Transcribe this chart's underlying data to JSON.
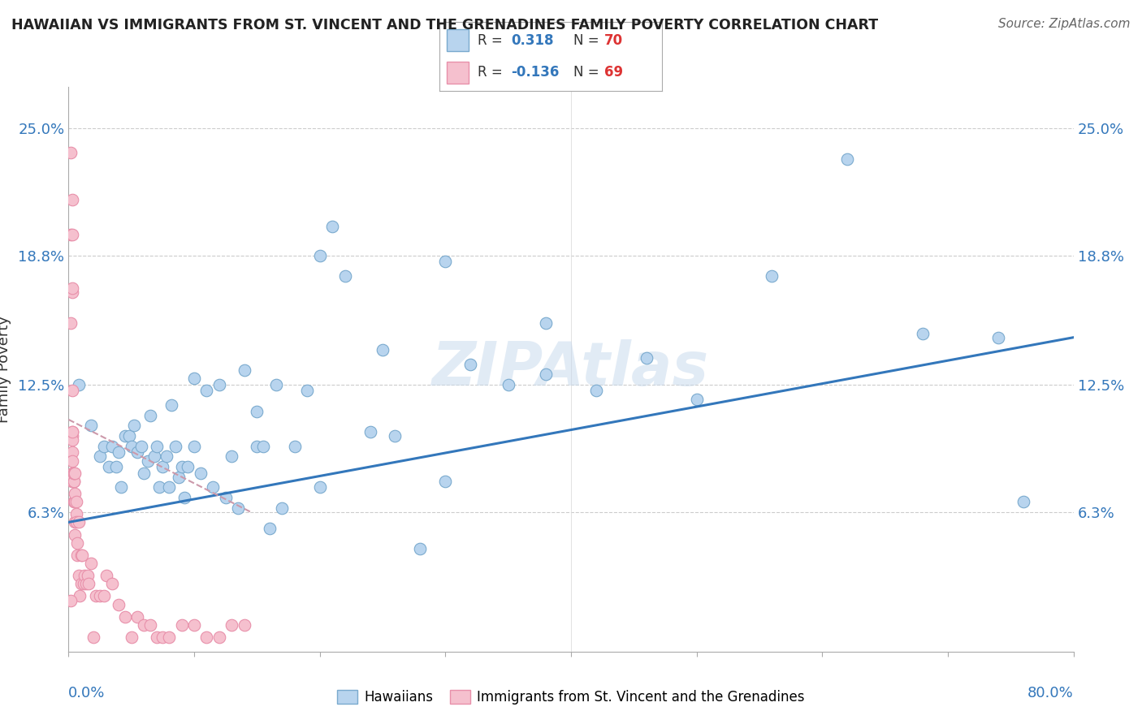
{
  "title": "HAWAIIAN VS IMMIGRANTS FROM ST. VINCENT AND THE GRENADINES FAMILY POVERTY CORRELATION CHART",
  "source": "Source: ZipAtlas.com",
  "ylabel": "Family Poverty",
  "ytick_vals": [
    0.063,
    0.125,
    0.188,
    0.25
  ],
  "ytick_labels": [
    "6.3%",
    "12.5%",
    "18.8%",
    "25.0%"
  ],
  "blue_color": "#b8d4ee",
  "blue_edge": "#7aaace",
  "pink_color": "#f5c0ce",
  "pink_edge": "#e890aa",
  "line_blue": "#3377bb",
  "line_pink": "#cc99aa",
  "xlim": [
    0.0,
    0.8
  ],
  "ylim": [
    -0.005,
    0.27
  ],
  "blue_trend_x": [
    0.0,
    0.8
  ],
  "blue_trend_y": [
    0.058,
    0.148
  ],
  "pink_trend_x": [
    0.0,
    0.145
  ],
  "pink_trend_y": [
    0.108,
    0.063
  ],
  "hawaiians_x": [
    0.008,
    0.018,
    0.025,
    0.028,
    0.032,
    0.035,
    0.038,
    0.04,
    0.042,
    0.045,
    0.048,
    0.05,
    0.052,
    0.055,
    0.058,
    0.06,
    0.063,
    0.065,
    0.068,
    0.07,
    0.072,
    0.075,
    0.078,
    0.08,
    0.082,
    0.085,
    0.088,
    0.09,
    0.092,
    0.095,
    0.1,
    0.105,
    0.11,
    0.115,
    0.12,
    0.125,
    0.13,
    0.135,
    0.14,
    0.15,
    0.155,
    0.16,
    0.165,
    0.17,
    0.18,
    0.19,
    0.2,
    0.21,
    0.22,
    0.24,
    0.26,
    0.28,
    0.3,
    0.32,
    0.35,
    0.38,
    0.42,
    0.46,
    0.5,
    0.56,
    0.62,
    0.68,
    0.74,
    0.76,
    0.38,
    0.3,
    0.25,
    0.2,
    0.15,
    0.1
  ],
  "hawaiians_y": [
    0.125,
    0.105,
    0.09,
    0.095,
    0.085,
    0.095,
    0.085,
    0.092,
    0.075,
    0.1,
    0.1,
    0.095,
    0.105,
    0.092,
    0.095,
    0.082,
    0.088,
    0.11,
    0.09,
    0.095,
    0.075,
    0.085,
    0.09,
    0.075,
    0.115,
    0.095,
    0.08,
    0.085,
    0.07,
    0.085,
    0.095,
    0.082,
    0.122,
    0.075,
    0.125,
    0.07,
    0.09,
    0.065,
    0.132,
    0.095,
    0.095,
    0.055,
    0.125,
    0.065,
    0.095,
    0.122,
    0.188,
    0.202,
    0.178,
    0.102,
    0.1,
    0.045,
    0.078,
    0.135,
    0.125,
    0.155,
    0.122,
    0.138,
    0.118,
    0.178,
    0.235,
    0.15,
    0.148,
    0.068,
    0.13,
    0.185,
    0.142,
    0.075,
    0.112,
    0.128
  ],
  "svg_x": [
    0.002,
    0.002,
    0.002,
    0.003,
    0.003,
    0.003,
    0.003,
    0.003,
    0.003,
    0.003,
    0.003,
    0.003,
    0.003,
    0.003,
    0.003,
    0.003,
    0.003,
    0.003,
    0.004,
    0.004,
    0.004,
    0.004,
    0.004,
    0.004,
    0.005,
    0.005,
    0.005,
    0.005,
    0.005,
    0.005,
    0.006,
    0.006,
    0.006,
    0.007,
    0.007,
    0.008,
    0.008,
    0.009,
    0.01,
    0.01,
    0.011,
    0.012,
    0.013,
    0.014,
    0.015,
    0.016,
    0.018,
    0.02,
    0.022,
    0.025,
    0.028,
    0.03,
    0.035,
    0.04,
    0.045,
    0.05,
    0.055,
    0.06,
    0.065,
    0.07,
    0.075,
    0.08,
    0.09,
    0.1,
    0.11,
    0.12,
    0.13,
    0.14,
    0.002
  ],
  "svg_y": [
    0.238,
    0.198,
    0.155,
    0.17,
    0.172,
    0.198,
    0.215,
    0.122,
    0.102,
    0.1,
    0.098,
    0.092,
    0.102,
    0.088,
    0.082,
    0.078,
    0.078,
    0.08,
    0.082,
    0.078,
    0.078,
    0.082,
    0.082,
    0.068,
    0.068,
    0.068,
    0.072,
    0.082,
    0.052,
    0.058,
    0.068,
    0.062,
    0.058,
    0.042,
    0.048,
    0.058,
    0.032,
    0.022,
    0.028,
    0.042,
    0.042,
    0.028,
    0.032,
    0.028,
    0.032,
    0.028,
    0.038,
    0.002,
    0.022,
    0.022,
    0.022,
    0.032,
    0.028,
    0.018,
    0.012,
    0.002,
    0.012,
    0.008,
    0.008,
    0.002,
    0.002,
    0.002,
    0.008,
    0.008,
    0.002,
    0.002,
    0.008,
    0.008,
    0.02
  ]
}
